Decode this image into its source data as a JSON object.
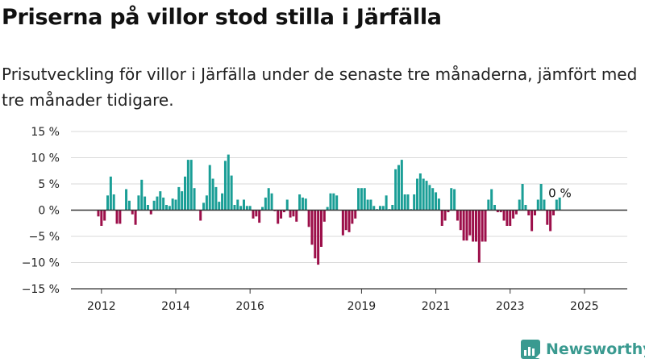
{
  "title": "Priserna på villor stod stilla i Järfälla",
  "subtitle": "Prisutveckling för villor i Järfälla under de senaste tre månaderna, jämfört med tre månader tidigare.",
  "brand": {
    "name": "Newsworthy"
  },
  "colors": {
    "positive": "#1a9e96",
    "negative": "#9c0f4a",
    "grid": "#d9d9d9",
    "axis": "#333333"
  },
  "chart_data": {
    "type": "bar",
    "title": "",
    "xlabel": "",
    "ylabel": "",
    "grid": true,
    "ylim": [
      -15,
      15
    ],
    "y_ticks": [
      15,
      10,
      5,
      0,
      -5,
      -10,
      -15
    ],
    "y_tick_labels": [
      "15 %",
      "10 %",
      "5 %",
      "0 %",
      "−5 %",
      "−10 %",
      "−15 %"
    ],
    "x_ticks": [
      {
        "label": "2012",
        "index": 1
      },
      {
        "label": "2014",
        "index": 25
      },
      {
        "label": "2016",
        "index": 49
      },
      {
        "label": "2019",
        "index": 85
      },
      {
        "label": "2021",
        "index": 109
      },
      {
        "label": "2023",
        "index": 133
      },
      {
        "label": "2025",
        "index": 157
      }
    ],
    "annotation": "0 %",
    "values": [
      -1.2,
      -3.0,
      -2.0,
      2.8,
      6.4,
      3.0,
      -2.6,
      -2.6,
      0,
      4.0,
      1.8,
      -0.8,
      -2.8,
      2.8,
      5.8,
      2.6,
      1.0,
      -0.8,
      1.8,
      2.6,
      3.6,
      2.4,
      1.0,
      0.8,
      2.2,
      2.0,
      4.4,
      3.6,
      6.4,
      9.6,
      9.6,
      4.2,
      0,
      -2.0,
      1.4,
      2.8,
      8.6,
      6.0,
      4.4,
      1.6,
      3.2,
      9.4,
      10.6,
      6.6,
      1.0,
      2.0,
      0.8,
      2.0,
      0.8,
      0.8,
      -1.6,
      -1.2,
      -2.4,
      0.6,
      2.4,
      4.2,
      3.2,
      -0.2,
      -2.6,
      -1.6,
      -0.4,
      2.0,
      -1.4,
      -1.2,
      -2.2,
      3.0,
      2.4,
      2.2,
      -3.2,
      -6.6,
      -9.2,
      -10.4,
      -7.0,
      -2.2,
      0.6,
      3.2,
      3.2,
      2.8,
      0,
      -4.8,
      -3.8,
      -4.2,
      -2.6,
      -1.6,
      4.2,
      4.2,
      4.2,
      2.0,
      2.0,
      0.8,
      0.2,
      0.8,
      0.8,
      2.8,
      0.2,
      1.0,
      7.8,
      8.6,
      9.6,
      3.0,
      3.0,
      0.2,
      3.0,
      6.0,
      7.0,
      6.0,
      5.6,
      4.8,
      4.2,
      3.4,
      2.2,
      -3.0,
      -2.0,
      -0.4,
      4.2,
      4.0,
      -2.0,
      -3.8,
      -5.8,
      -5.8,
      -4.8,
      -6.0,
      -6.0,
      -10.0,
      -6.0,
      -6.0,
      2.0,
      4.0,
      1.0,
      -0.4,
      -0.4,
      -2.0,
      -3.0,
      -3.0,
      -1.6,
      -0.8,
      2.0,
      5.0,
      1.0,
      -1.0,
      -4.0,
      -1.0,
      2.0,
      5.0,
      2.0,
      -2.8,
      -4.0,
      -1.0,
      2.0,
      2.4
    ]
  }
}
